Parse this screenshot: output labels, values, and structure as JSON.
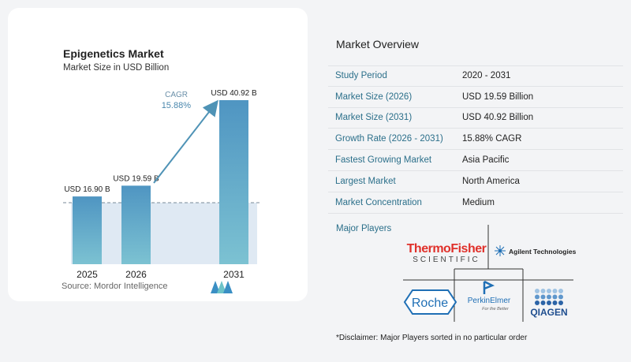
{
  "left": {
    "title": "Epigenetics Market",
    "subtitle": "Market Size in USD Billion",
    "source": "Source:  Mordor Intelligence",
    "cagr_label": "CAGR",
    "cagr_value": "15.88%"
  },
  "chart_data": {
    "type": "bar",
    "title": "Epigenetics Market",
    "subtitle": "Market Size in USD Billion",
    "categories": [
      "2025",
      "2026",
      "2031"
    ],
    "values": [
      16.9,
      19.59,
      40.92
    ],
    "data_labels": [
      "USD 16.90 B",
      "USD 19.59 B",
      "USD 40.92 B"
    ],
    "ylim": [
      0,
      40.92
    ],
    "grid": false,
    "annotation": {
      "text": "CAGR",
      "value": "15.88%"
    }
  },
  "overview": {
    "title": "Market Overview",
    "rows": [
      {
        "key": "Study Period",
        "value": "2020 - 2031"
      },
      {
        "key": "Market Size (2026)",
        "value": "USD 19.59 Billion"
      },
      {
        "key": "Market Size (2031)",
        "value": "USD 40.92 Billion"
      },
      {
        "key": "Growth Rate (2026 - 2031)",
        "value": "15.88% CAGR"
      },
      {
        "key": "Fastest Growing Market",
        "value": "Asia Pacific"
      },
      {
        "key": "Largest Market",
        "value": "North America"
      },
      {
        "key": "Market Concentration",
        "value": "Medium"
      }
    ],
    "major_players_title": "Major Players",
    "players": {
      "thermo_top": "ThermoFisher",
      "thermo_bottom": "SCIENTIFIC",
      "agilent": "Agilent Technologies",
      "roche": "Roche",
      "perkin": "PerkinElmer",
      "perkin_tag": "For the Better",
      "qiagen": "QIAGEN"
    },
    "disclaimer": "*Disclaimer: Major Players sorted in no particular order"
  },
  "colors": {
    "bar": "#5a9ec4",
    "bar_last": "#6fb6cf",
    "shade": "#dde8f2",
    "arrow": "#4f93b6",
    "teal_text": "#2b6f8a"
  }
}
